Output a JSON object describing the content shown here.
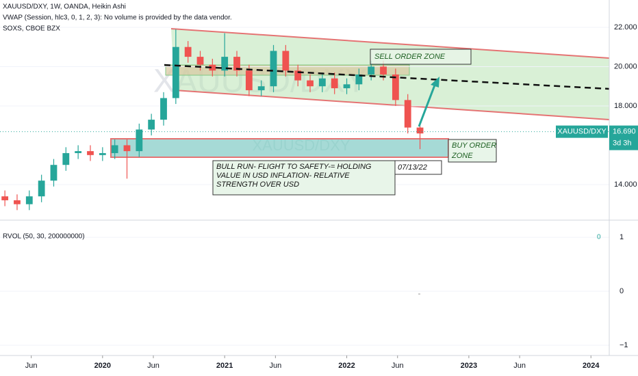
{
  "header": [
    "XAUUSD/DXY, 1W, OANDA, Heikin Ashi",
    "VWAP (Session, hlc3, 0, 1, 2, 3): No volume is provided by the data vendor.",
    "SOXS, CBOE BZX"
  ],
  "notes": {
    "sell": [
      "SELL ORDER ZONE"
    ],
    "buy": [
      "BUY ORDER",
      "ZONE"
    ],
    "bull": [
      "BULL RUN- FLIGHT TO  SAFETY-= HOLDING",
      "VALUE IN USD INFLATION- RELATIVE",
      "STRENGTH OVER USD"
    ],
    "date": "07/13/22"
  },
  "chart_data": {
    "type": "candlestick",
    "symbol": "XAUUSD/DXY",
    "last_price": {
      "value": 16.69,
      "label": "16.690"
    },
    "countdown": "3d 3h",
    "up_color": "#26a69a",
    "down_color": "#ef5350",
    "x": [
      2019.2,
      2019.3,
      2019.4,
      2019.5,
      2019.6,
      2019.7,
      2019.8,
      2019.9,
      2020.0,
      2020.1,
      2020.2,
      2020.3,
      2020.4,
      2020.5,
      2020.6,
      2020.7,
      2020.8,
      2020.9,
      2021.0,
      2021.1,
      2021.2,
      2021.3,
      2021.4,
      2021.5,
      2021.6,
      2021.7,
      2021.8,
      2021.9,
      2022.0,
      2022.1,
      2022.2,
      2022.3,
      2022.4,
      2022.5,
      2022.6
    ],
    "open": [
      13.4,
      13.2,
      13.0,
      13.4,
      14.2,
      15.0,
      15.6,
      15.7,
      15.5,
      15.6,
      16.0,
      15.7,
      16.8,
      17.3,
      18.4,
      21.0,
      20.5,
      20.1,
      19.8,
      20.5,
      19.8,
      18.8,
      19.0,
      20.8,
      19.8,
      19.3,
      19.0,
      19.4,
      18.9,
      19.1,
      19.6,
      20.0,
      19.6,
      18.3,
      16.9
    ],
    "high": [
      13.7,
      13.5,
      13.7,
      14.5,
      15.3,
      15.9,
      16.0,
      16.0,
      15.9,
      16.3,
      16.3,
      17.1,
      17.6,
      18.7,
      21.9,
      21.3,
      20.8,
      20.4,
      21.7,
      20.8,
      20.1,
      19.3,
      21.1,
      21.1,
      20.1,
      19.6,
      19.7,
      19.7,
      19.4,
      19.9,
      20.3,
      20.3,
      19.9,
      18.6,
      17.2
    ],
    "low": [
      12.9,
      12.7,
      12.7,
      13.1,
      13.9,
      14.7,
      15.3,
      15.2,
      15.2,
      15.3,
      14.3,
      15.4,
      16.5,
      17.0,
      18.1,
      20.2,
      19.8,
      19.5,
      19.5,
      19.5,
      18.5,
      18.5,
      18.7,
      19.5,
      19.0,
      18.7,
      18.7,
      18.6,
      18.6,
      18.8,
      19.3,
      19.3,
      18.0,
      16.6,
      15.8
    ],
    "close": [
      13.2,
      13.0,
      13.4,
      14.2,
      15.0,
      15.6,
      15.7,
      15.5,
      15.6,
      16.0,
      15.7,
      16.8,
      17.3,
      18.4,
      21.0,
      20.5,
      20.1,
      19.8,
      20.5,
      19.8,
      18.8,
      19.0,
      20.8,
      19.8,
      19.3,
      19.0,
      19.4,
      18.9,
      19.1,
      19.6,
      20.0,
      19.6,
      18.3,
      16.9,
      16.6
    ],
    "xlim": [
      2019.16,
      2024.15
    ],
    "xticks": [
      {
        "value": 2019.416,
        "label": "Jun"
      },
      2020,
      {
        "value": 2020.416,
        "label": "Jun"
      },
      2021,
      {
        "value": 2021.416,
        "label": "Jun"
      },
      2022,
      {
        "value": 2022.416,
        "label": "Jun"
      },
      2023,
      {
        "value": 2023.416,
        "label": "Jun"
      },
      2024
    ],
    "ylim": [
      12.19,
      23.39
    ],
    "yticks": [
      {
        "value": 22,
        "label": "22.000"
      },
      {
        "value": 20,
        "label": "20.000"
      },
      {
        "value": 18,
        "label": "18.000"
      },
      {
        "value": 14,
        "label": "14.000"
      }
    ],
    "rvol": {
      "label": "RVOL (50, 30, 200000000)",
      "value": 0,
      "ylim": [
        -1.19,
        1.28
      ],
      "yticks": [
        1,
        0,
        {
          "value": -1,
          "label": "−1"
        }
      ]
    }
  }
}
